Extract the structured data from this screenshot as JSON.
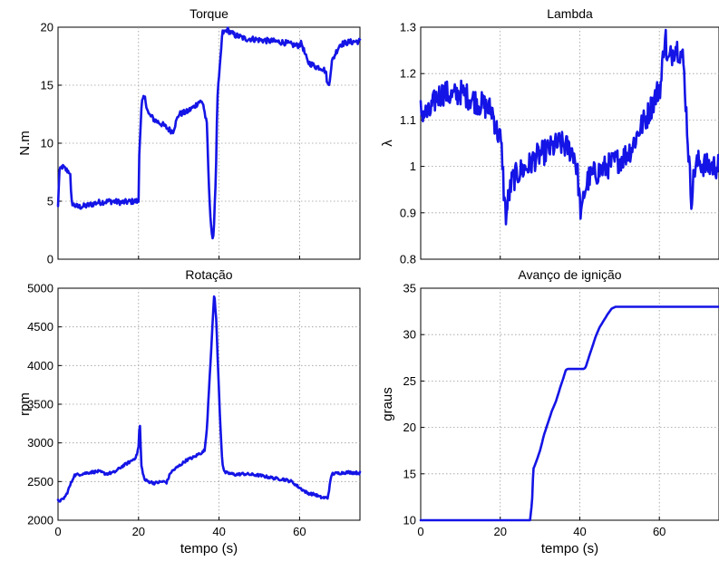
{
  "colors": {
    "series": "#1414e6",
    "grid": "#9a9a9a",
    "axes": "#000000"
  },
  "chart_data": [
    {
      "type": "line",
      "title": "Torque",
      "xlabel": "",
      "ylabel": "N.m",
      "xlim": [
        0,
        75
      ],
      "ylim": [
        0,
        20
      ],
      "xticks": [
        0,
        20,
        40,
        60
      ],
      "xtick_labels": [
        "",
        "",
        "",
        ""
      ],
      "yticks": [
        0,
        5,
        10,
        15,
        20
      ],
      "ytick_labels": [
        "0",
        "5",
        "10",
        "15",
        "20"
      ],
      "grid": true,
      "noise": 0.25,
      "series": [
        {
          "x": [
            0,
            0.3,
            1,
            2,
            3,
            3.3,
            3.8,
            5,
            7,
            10,
            13,
            16,
            19,
            20,
            20.2,
            20.8,
            21.5,
            22.5,
            24,
            26,
            27.5,
            28.5,
            30,
            32,
            34,
            35,
            36,
            37,
            37.5,
            38,
            38.5,
            39.2,
            39.6,
            40.2,
            40.8,
            41.5,
            42,
            43,
            44,
            45,
            46.5,
            48,
            50,
            53,
            56,
            58,
            59.5,
            60,
            60.5,
            62,
            64,
            65.5,
            66.5,
            67,
            67.3,
            68,
            69,
            70,
            72,
            75
          ],
          "y": [
            4.5,
            7.5,
            8,
            7.7,
            7.5,
            5,
            4.7,
            4.5,
            4.6,
            4.9,
            5,
            4.9,
            5,
            5,
            9.5,
            13.5,
            14,
            12.5,
            12,
            11.6,
            11.2,
            11,
            12.5,
            12.7,
            13.2,
            13.6,
            13.5,
            11.5,
            6,
            3,
            1.2,
            7,
            14,
            16.5,
            19.5,
            19.6,
            19.8,
            19.5,
            19.3,
            19.2,
            19,
            19,
            18.9,
            18.8,
            18.7,
            18.5,
            18.4,
            18.5,
            18.6,
            17,
            16.6,
            16.5,
            16.2,
            15,
            15,
            17,
            17.8,
            18.5,
            18.7,
            18.8
          ]
        }
      ]
    },
    {
      "type": "line",
      "title": "Lambda",
      "xlabel": "",
      "ylabel": "λ",
      "xlim": [
        0,
        75
      ],
      "ylim": [
        0.8,
        1.3
      ],
      "xticks": [
        0,
        20,
        40,
        60
      ],
      "xtick_labels": [
        "",
        "",
        "",
        ""
      ],
      "yticks": [
        0.8,
        0.9,
        1,
        1.1,
        1.2,
        1.3
      ],
      "ytick_labels": [
        "0.8",
        "0.9",
        "1",
        "1.1",
        "1.2",
        "1.3"
      ],
      "grid": true,
      "noise": 0.028,
      "series": [
        {
          "x": [
            0,
            2,
            4,
            6,
            8,
            10,
            12,
            14,
            16,
            18,
            19,
            20,
            20.5,
            21,
            21.5,
            22,
            23,
            25,
            27,
            29,
            31,
            33,
            35,
            37,
            38.5,
            39.5,
            40,
            40.5,
            41,
            42,
            43,
            45,
            47,
            49,
            51,
            53,
            55,
            57,
            59,
            60.5,
            61,
            61.5,
            62,
            63,
            64,
            65,
            66,
            66.5,
            67,
            68,
            69,
            70,
            72,
            75
          ],
          "y": [
            1.12,
            1.11,
            1.15,
            1.16,
            1.15,
            1.16,
            1.15,
            1.14,
            1.13,
            1.12,
            1.08,
            1.06,
            1.02,
            0.93,
            0.89,
            0.93,
            0.97,
            0.99,
            1.0,
            1.02,
            1.03,
            1.04,
            1.05,
            1.04,
            1.03,
            0.98,
            0.92,
            0.89,
            0.94,
            0.97,
            0.98,
            0.99,
            1.0,
            1.01,
            1.02,
            1.04,
            1.08,
            1.11,
            1.15,
            1.18,
            1.25,
            1.29,
            1.22,
            1.24,
            1.26,
            1.25,
            1.23,
            1.16,
            1.08,
            0.93,
            1.0,
            1.01,
            1.0,
            1.0
          ]
        }
      ]
    },
    {
      "type": "line",
      "title": "Rotação",
      "xlabel": "tempo (s)",
      "ylabel": "rpm",
      "xlim": [
        0,
        75
      ],
      "ylim": [
        2000,
        5000
      ],
      "xticks": [
        0,
        20,
        40,
        60
      ],
      "xtick_labels": [
        "0",
        "20",
        "40",
        "60"
      ],
      "yticks": [
        2000,
        2500,
        3000,
        3500,
        4000,
        4500,
        5000
      ],
      "ytick_labels": [
        "2000",
        "2500",
        "3000",
        "3500",
        "4000",
        "4500",
        "5000"
      ],
      "grid": true,
      "noise": 18,
      "series": [
        {
          "x": [
            0,
            1,
            2,
            3,
            4,
            6,
            8,
            10,
            12,
            14,
            16,
            18,
            19,
            19.5,
            20,
            20.3,
            20.7,
            21.5,
            22.5,
            24,
            26,
            27,
            28,
            30,
            32,
            34,
            35,
            36,
            36.5,
            37,
            37.5,
            38.3,
            38.8,
            39.3,
            39.8,
            40.3,
            40.8,
            41.3,
            42,
            44,
            46,
            48,
            50,
            52,
            54,
            56,
            58,
            60,
            62,
            64,
            65,
            66,
            67,
            67.5,
            68,
            70,
            72,
            75
          ],
          "y": [
            2250,
            2260,
            2320,
            2450,
            2580,
            2600,
            2620,
            2630,
            2600,
            2620,
            2700,
            2760,
            2800,
            2830,
            2950,
            3300,
            2700,
            2520,
            2500,
            2480,
            2500,
            2490,
            2620,
            2700,
            2780,
            2820,
            2860,
            2880,
            2920,
            3200,
            3700,
            4450,
            4950,
            4600,
            3900,
            3250,
            2750,
            2620,
            2610,
            2590,
            2600,
            2590,
            2580,
            2560,
            2540,
            2530,
            2500,
            2420,
            2350,
            2330,
            2300,
            2290,
            2290,
            2450,
            2600,
            2610,
            2620,
            2610
          ]
        }
      ]
    },
    {
      "type": "line",
      "title": "Avanço de ignição",
      "xlabel": "tempo (s)",
      "ylabel": "graus",
      "xlim": [
        0,
        75
      ],
      "ylim": [
        10,
        35
      ],
      "xticks": [
        0,
        20,
        40,
        60
      ],
      "xtick_labels": [
        "0",
        "20",
        "40",
        "60"
      ],
      "yticks": [
        10,
        15,
        20,
        25,
        30,
        35
      ],
      "ytick_labels": [
        "10",
        "15",
        "20",
        "25",
        "30",
        "35"
      ],
      "grid": true,
      "noise": 0,
      "series": [
        {
          "x": [
            0,
            27.5,
            28,
            28.3,
            28.6,
            29.2,
            30,
            31,
            32,
            33,
            34,
            35,
            36,
            36.5,
            37,
            38,
            39,
            40,
            41,
            41.5,
            42,
            43,
            44,
            45,
            46,
            47,
            48,
            49,
            50,
            55,
            60,
            65,
            70,
            75
          ],
          "y": [
            10,
            10,
            12,
            15.5,
            15.8,
            16.5,
            17.5,
            19.2,
            20.5,
            21.8,
            22.8,
            24.2,
            25.5,
            26.2,
            26.3,
            26.3,
            26.3,
            26.3,
            26.3,
            26.5,
            27.2,
            28.5,
            29.8,
            30.8,
            31.5,
            32.2,
            32.8,
            33,
            33,
            33,
            33,
            33,
            33,
            33
          ]
        }
      ]
    }
  ]
}
